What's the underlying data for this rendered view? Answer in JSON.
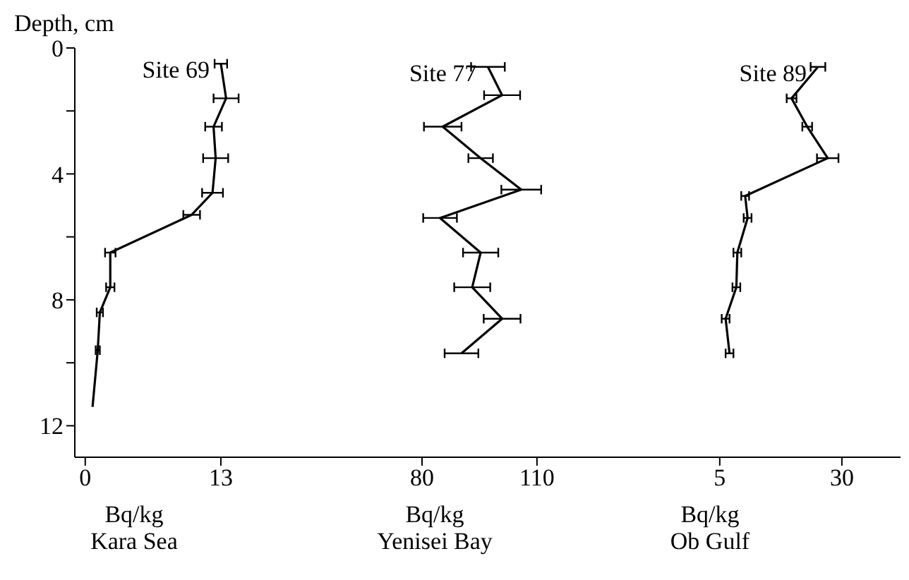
{
  "chart_data": [
    {
      "type": "line",
      "ylabel": "Depth, cm",
      "xlabel": "Bq/kg\nKara Sea",
      "xlim": [
        -1,
        22
      ],
      "xticks": [
        0,
        13
      ],
      "ylim": [
        13,
        0
      ],
      "yticks": [
        0,
        {
          "value": 2,
          "label": null
        },
        4,
        {
          "value": 6,
          "label": null
        },
        8,
        {
          "value": 10,
          "label": null
        },
        12
      ],
      "series": [
        {
          "name": "Site 69",
          "color": "#000000",
          "x": [
            13.0,
            13.5,
            12.3,
            12.5,
            12.2,
            10.2,
            2.4,
            2.4,
            1.4,
            1.2,
            0.7
          ],
          "values": [
            0.5,
            1.6,
            2.5,
            3.5,
            4.6,
            5.3,
            6.5,
            7.6,
            8.4,
            9.6,
            11.4
          ],
          "xerrors": [
            0.6,
            1.2,
            0.8,
            1.2,
            1.0,
            0.8,
            0.5,
            0.4,
            0.3,
            0.2,
            null
          ]
        }
      ]
    },
    {
      "type": "line",
      "xlabel": "Bq/kg\nYenisei Bay",
      "xlim": [
        52,
        122
      ],
      "xticks": [
        80,
        110
      ],
      "ylim": [
        13,
        0
      ],
      "tick_labels": "x",
      "series": [
        {
          "name": "Site 77",
          "color": "#000000",
          "x": [
            97.2,
            100.9,
            85.4,
            95.3,
            105.9,
            84.7,
            95.3,
            93.1,
            100.9,
            90.3
          ],
          "values": [
            0.6,
            1.5,
            2.5,
            3.5,
            4.5,
            5.4,
            6.5,
            7.6,
            8.6,
            9.7
          ],
          "xerrors": [
            4.4,
            4.7,
            4.9,
            3.2,
            5.2,
            4.4,
            4.6,
            4.7,
            4.8,
            4.4
          ]
        }
      ]
    },
    {
      "type": "line",
      "xlabel": "Bq/kg\nOb Gulf",
      "xlim": [
        -23,
        42
      ],
      "xticks": [
        5,
        30
      ],
      "ylim": [
        13,
        0
      ],
      "tick_labels": "x",
      "series": [
        {
          "name": "Site 89",
          "color": "#000000",
          "x": [
            25.1,
            19.7,
            22.9,
            27.1,
            10.2,
            10.7,
            8.6,
            8.4,
            6.2,
            7.0
          ],
          "values": [
            0.6,
            1.6,
            2.5,
            3.5,
            4.7,
            5.4,
            6.5,
            7.6,
            8.6,
            9.7
          ],
          "xerrors": [
            1.5,
            1.0,
            1.0,
            2.2,
            0.8,
            0.8,
            0.8,
            0.8,
            0.8,
            0.8
          ]
        }
      ]
    }
  ]
}
